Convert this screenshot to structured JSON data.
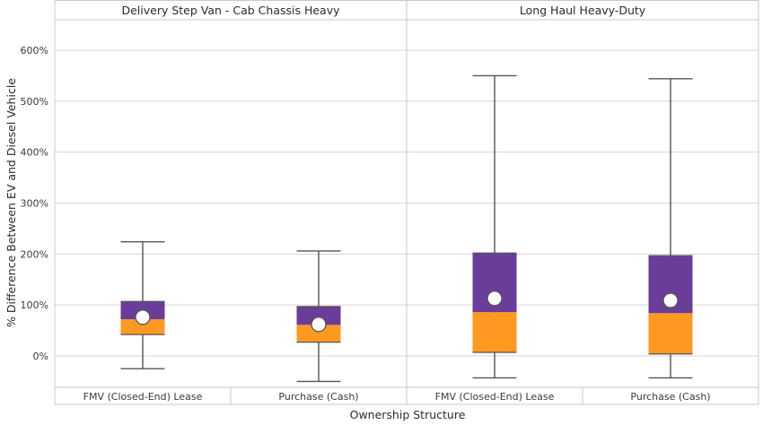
{
  "chart_data": {
    "type": "box",
    "ylabel": "% Difference Between EV and Diesel Vehicle",
    "xlabel": "Ownership Structure",
    "ylim": [
      -60,
      660
    ],
    "yticks": [
      0,
      100,
      200,
      300,
      400,
      500,
      600
    ],
    "ytick_labels": [
      "0%",
      "100%",
      "200%",
      "300%",
      "400%",
      "500%",
      "600%"
    ],
    "colors": {
      "upper_box": "#6a3d9a",
      "lower_box": "#ff9922"
    },
    "panels": [
      {
        "title": "Delivery Step Van - Cab Chassis Heavy",
        "categories": [
          "FMV (Closed-End) Lease",
          "Purchase (Cash)"
        ],
        "boxes": [
          {
            "min": -25,
            "q1": 42,
            "median": 72,
            "q3": 107,
            "max": 224,
            "mean": 76
          },
          {
            "min": -50,
            "q1": 27,
            "median": 61,
            "q3": 97,
            "max": 206,
            "mean": 62
          }
        ]
      },
      {
        "title": "Long Haul Heavy-Duty",
        "categories": [
          "FMV (Closed-End) Lease",
          "Purchase (Cash)"
        ],
        "boxes": [
          {
            "min": -43,
            "q1": 7,
            "median": 86,
            "q3": 202,
            "max": 550,
            "mean": 113
          },
          {
            "min": -43,
            "q1": 4,
            "median": 84,
            "q3": 197,
            "max": 544,
            "mean": 109
          }
        ]
      }
    ]
  }
}
